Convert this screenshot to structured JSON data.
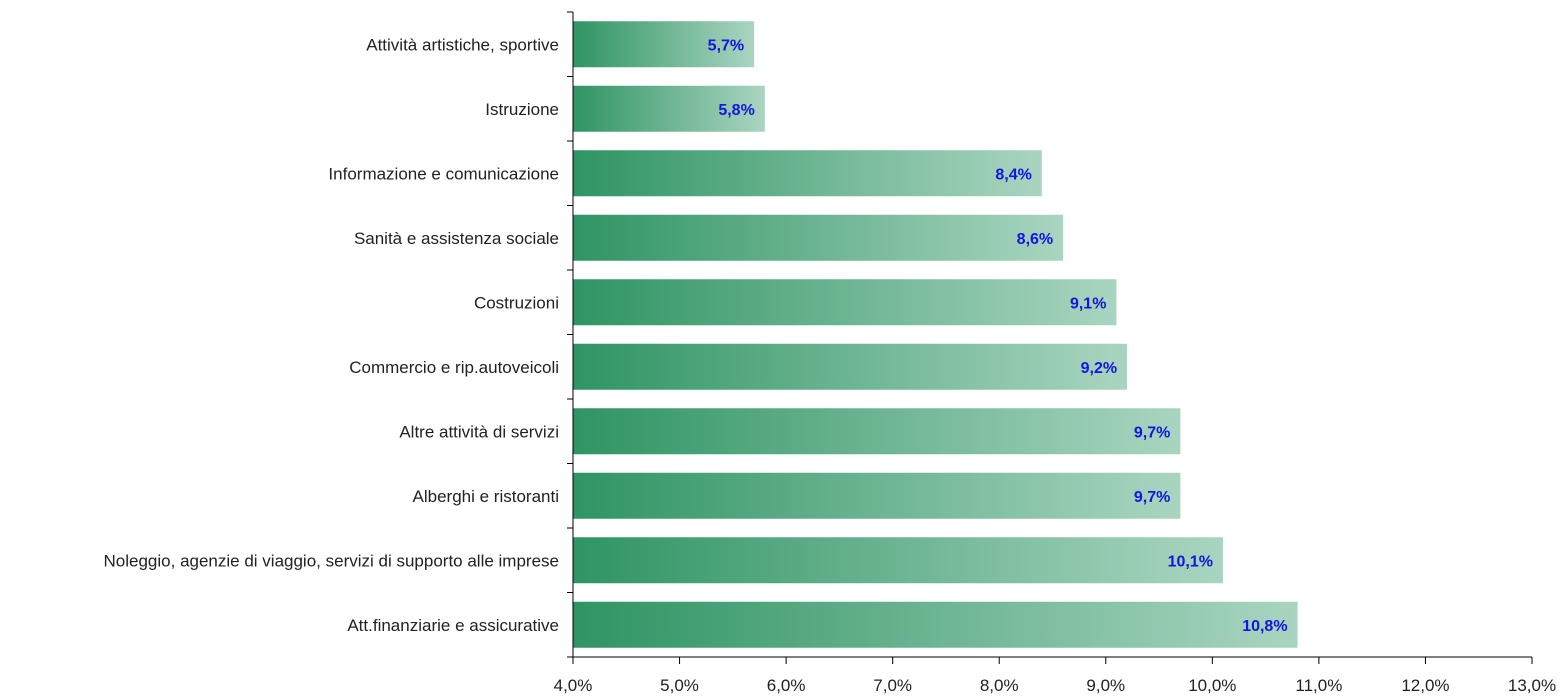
{
  "chart_data": {
    "type": "bar",
    "orientation": "horizontal",
    "categories": [
      "Attività artistiche, sportive",
      "Istruzione",
      "Informazione e comunicazione",
      "Sanità e assistenza sociale",
      "Costruzioni",
      "Commercio e rip.autoveicoli",
      "Altre attività di servizi",
      "Alberghi e ristoranti",
      "Noleggio, agenzie di viaggio, servizi di supporto alle imprese",
      "Att.finanziarie e assicurative"
    ],
    "values": [
      5.7,
      5.8,
      8.4,
      8.6,
      9.1,
      9.2,
      9.7,
      9.7,
      10.1,
      10.8
    ],
    "data_labels": [
      "5,7%",
      "5,8%",
      "8,4%",
      "8,6%",
      "9,1%",
      "9,2%",
      "9,7%",
      "9,7%",
      "10,1%",
      "10,8%"
    ],
    "xlim": [
      4.0,
      13.0
    ],
    "x_ticks": [
      4,
      5,
      6,
      7,
      8,
      9,
      10,
      11,
      12,
      13
    ],
    "x_tick_labels": [
      "4,0%",
      "5,0%",
      "6,0%",
      "7,0%",
      "8,0%",
      "9,0%",
      "10,0%",
      "11,0%",
      "12,0%",
      "13,0%"
    ],
    "title": "",
    "xlabel": "",
    "ylabel": "",
    "grid": false,
    "legend": "none",
    "colors": {
      "bar_dark": "#2f9464",
      "bar_light": "#a9d5c0",
      "data_label": "#1414e6",
      "axis": "#000000",
      "text": "#222222"
    }
  }
}
